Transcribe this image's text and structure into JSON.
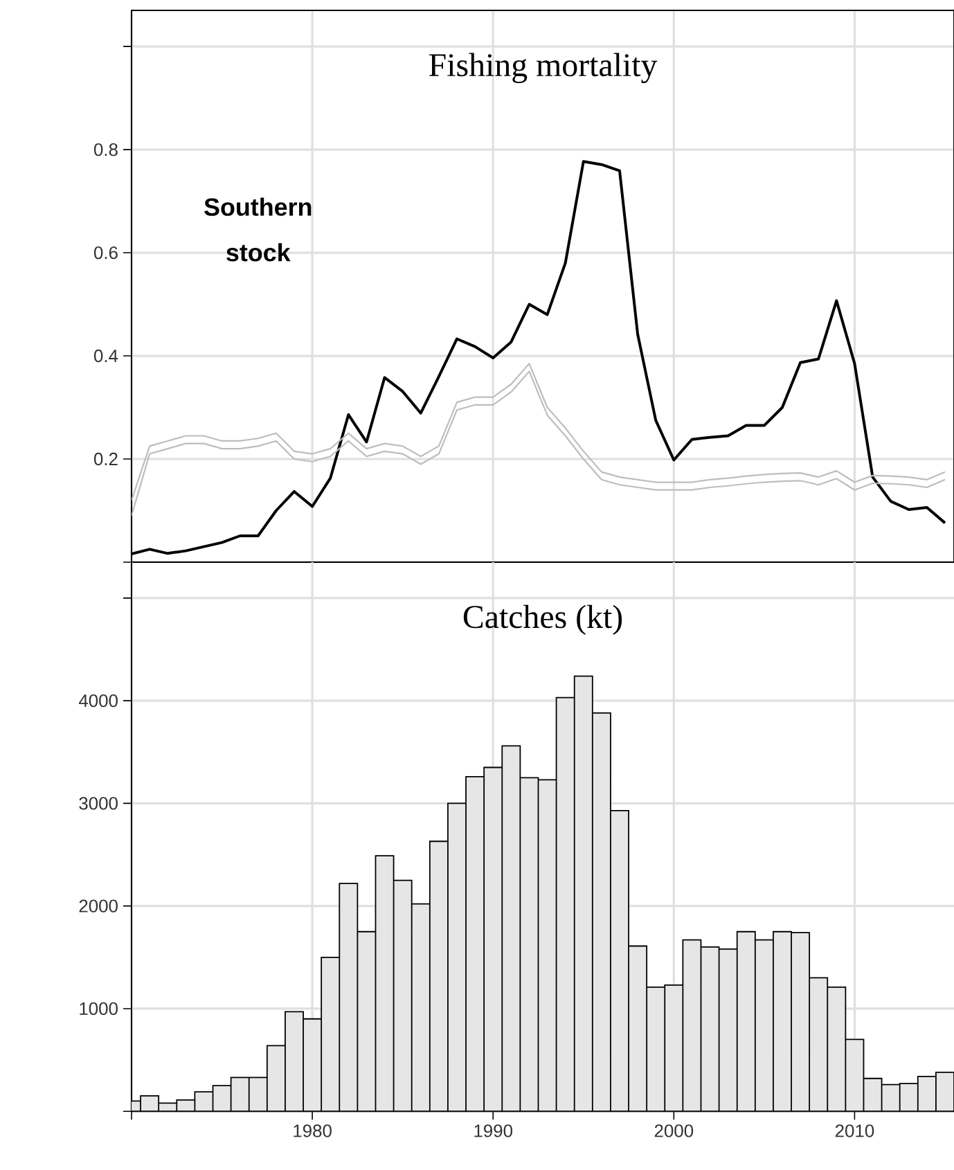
{
  "chart_data": [
    {
      "type": "line",
      "title": "Fishing mortality",
      "annotations": [
        "Southern stock"
      ],
      "x": [
        1970,
        1971,
        1972,
        1973,
        1974,
        1975,
        1976,
        1977,
        1978,
        1979,
        1980,
        1981,
        1982,
        1983,
        1984,
        1985,
        1986,
        1987,
        1988,
        1989,
        1990,
        1991,
        1992,
        1993,
        1994,
        1995,
        1996,
        1997,
        1998,
        1999,
        2000,
        2001,
        2002,
        2003,
        2004,
        2005,
        2006,
        2007,
        2008,
        2009,
        2010,
        2011,
        2012,
        2013,
        2014,
        2015
      ],
      "series": [
        {
          "color": "#000000",
          "values": [
            0.016,
            0.025,
            0.017,
            0.022,
            0.03,
            0.038,
            0.051,
            0.051,
            0.1,
            0.137,
            0.108,
            0.163,
            0.286,
            0.233,
            0.358,
            0.331,
            0.289,
            0.36,
            0.433,
            0.418,
            0.396,
            0.427,
            0.5,
            0.48,
            0.58,
            0.777,
            0.771,
            0.759,
            0.442,
            0.275,
            0.198,
            0.238,
            0.242,
            0.245,
            0.265,
            0.265,
            0.3,
            0.387,
            0.394,
            0.507,
            0.385,
            0.165,
            0.118,
            0.102,
            0.106,
            0.076
          ]
        },
        {
          "color": "#bdbdbd",
          "values": [
            0.12,
            0.225,
            0.235,
            0.245,
            0.245,
            0.235,
            0.235,
            0.24,
            0.25,
            0.215,
            0.21,
            0.22,
            0.25,
            0.22,
            0.23,
            0.225,
            0.205,
            0.225,
            0.31,
            0.32,
            0.32,
            0.345,
            0.385,
            0.3,
            0.26,
            0.215,
            0.175,
            0.165,
            0.16,
            0.155,
            0.155,
            0.155,
            0.16,
            0.163,
            0.167,
            0.17,
            0.172,
            0.173,
            0.165,
            0.177,
            0.155,
            0.168,
            0.167,
            0.165,
            0.16,
            0.175
          ]
        },
        {
          "color": "#bdbdbd",
          "values": [
            0.09,
            0.21,
            0.22,
            0.23,
            0.23,
            0.22,
            0.22,
            0.225,
            0.235,
            0.2,
            0.195,
            0.205,
            0.235,
            0.205,
            0.215,
            0.21,
            0.19,
            0.21,
            0.295,
            0.305,
            0.305,
            0.33,
            0.37,
            0.285,
            0.245,
            0.2,
            0.16,
            0.15,
            0.145,
            0.14,
            0.14,
            0.14,
            0.145,
            0.148,
            0.152,
            0.155,
            0.157,
            0.158,
            0.15,
            0.162,
            0.14,
            0.153,
            0.152,
            0.15,
            0.145,
            0.16
          ]
        }
      ],
      "xlim": [
        1970,
        2015.5
      ],
      "ylim": [
        0,
        1.07
      ],
      "xticks": [
        {
          "value": 1970,
          "label": null
        },
        1980,
        1990,
        2000,
        2010
      ],
      "yticks": [
        {
          "value": 0,
          "label": null
        },
        0.2,
        0.4,
        0.6,
        0.8,
        {
          "value": 1.0,
          "label": null
        }
      ],
      "grid": true,
      "tick_labels": "y"
    },
    {
      "type": "bar",
      "title": "Catches (kt)",
      "x": [
        1970,
        1971,
        1972,
        1973,
        1974,
        1975,
        1976,
        1977,
        1978,
        1979,
        1980,
        1981,
        1982,
        1983,
        1984,
        1985,
        1986,
        1987,
        1988,
        1989,
        1990,
        1991,
        1992,
        1993,
        1994,
        1995,
        1996,
        1997,
        1998,
        1999,
        2000,
        2001,
        2002,
        2003,
        2004,
        2005,
        2006,
        2007,
        2008,
        2009,
        2010,
        2011,
        2012,
        2013,
        2014,
        2015
      ],
      "values": [
        100,
        150,
        80,
        110,
        190,
        250,
        330,
        330,
        640,
        970,
        900,
        1500,
        2220,
        1750,
        2490,
        2250,
        2020,
        2630,
        3000,
        3260,
        3350,
        3560,
        3250,
        3230,
        4030,
        4240,
        3880,
        2930,
        1610,
        1210,
        1230,
        1670,
        1600,
        1580,
        1750,
        1670,
        1750,
        1740,
        1300,
        1210,
        700,
        320,
        260,
        270,
        340,
        380
      ],
      "color": "#e6e6e6",
      "xlim": [
        1970,
        2015.5
      ],
      "ylim": [
        0,
        5350
      ],
      "xticks": [
        {
          "value": 1970,
          "label": null
        },
        1980,
        1990,
        2000,
        2010
      ],
      "yticks": [
        {
          "value": 0,
          "label": null
        },
        1000,
        2000,
        3000,
        4000,
        {
          "value": 5000,
          "label": null
        }
      ],
      "grid": true
    }
  ]
}
